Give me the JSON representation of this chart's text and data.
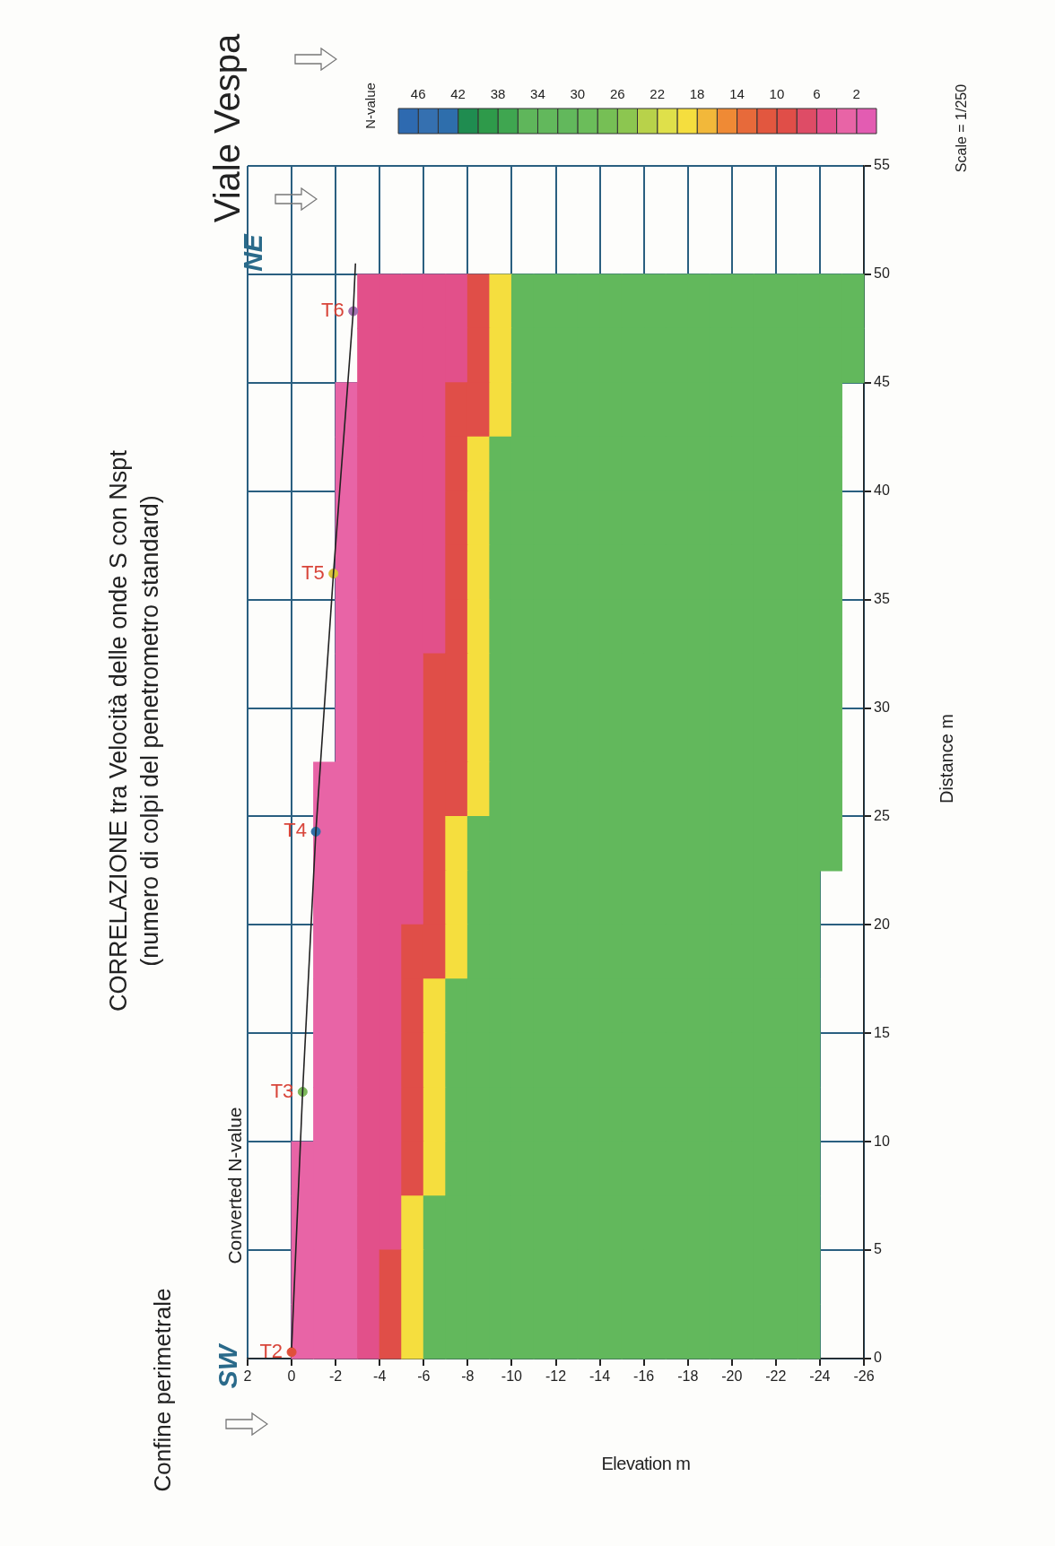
{
  "chart_data": {
    "type": "heatmap",
    "title": "CORRELAZIONE  tra Velocità delle onde S con  Nspt",
    "subtitle": "(numero di colpi del penetrometro standard)",
    "xlabel": "Elevation m",
    "ylabel": "Distance m",
    "clabel": "N-value",
    "xlim": [
      2,
      -26
    ],
    "xticks": [
      2,
      0,
      -2,
      -4,
      -6,
      -8,
      -10,
      -12,
      -14,
      -16,
      -18,
      -20,
      -22,
      -24,
      -26
    ],
    "ylim": [
      0,
      55
    ],
    "yticks": [
      0,
      5,
      10,
      15,
      20,
      25,
      30,
      35,
      40,
      45,
      50,
      55
    ],
    "clim": [
      0,
      48
    ],
    "cticks": [
      2,
      6,
      10,
      14,
      18,
      22,
      26,
      30,
      34,
      38,
      42,
      46
    ],
    "colors": [
      "#e35cb2",
      "#e864a6",
      "#e2508a",
      "#de4c66",
      "#e04e48",
      "#e2573f",
      "#e76a3a",
      "#ef8a35",
      "#f2b83a",
      "#f5de3e",
      "#dfe04a",
      "#b8d24a",
      "#8cc650",
      "#76bf55",
      "#6bbd5a",
      "#62b85c",
      "#62b85c",
      "#5fb65b",
      "#3fa650",
      "#2e9a4a",
      "#1f8c50",
      "#2e6eac",
      "#3570b0",
      "#2e6ab0"
    ],
    "grid": true,
    "legend": false,
    "x": [
      -0.5,
      -1.5,
      -2.5,
      -3.5,
      -4.5,
      -5.5,
      -6.5,
      -7.5,
      -8.5,
      -9.5,
      -10.5,
      -11.5,
      -12.5,
      -13.5,
      -14.5,
      -15.5,
      -16.5,
      -17.5,
      -18.5,
      -19.5,
      -20.5,
      -21.5,
      -22.5,
      -23.5,
      -24.5,
      -25.5
    ],
    "y": [
      48.75,
      46.25,
      43.75,
      41.25,
      38.75,
      36.25,
      33.75,
      31.25,
      28.75,
      26.25,
      23.75,
      21.25,
      18.75,
      16.25,
      13.75,
      11.25,
      8.75,
      6.25,
      3.75,
      1.25
    ],
    "cells": [
      [
        null,
        null,
        null,
        4,
        4,
        4,
        4,
        4,
        8,
        18,
        30,
        30,
        30,
        30,
        30,
        30,
        30,
        30,
        30,
        30,
        30,
        30,
        30,
        30,
        30,
        30
      ],
      [
        null,
        null,
        null,
        4,
        4,
        4,
        4,
        4,
        8,
        18,
        30,
        30,
        30,
        30,
        30,
        30,
        30,
        30,
        30,
        30,
        30,
        30,
        30,
        30,
        30,
        30
      ],
      [
        null,
        null,
        2,
        4,
        4,
        4,
        4,
        8,
        8,
        18,
        30,
        30,
        30,
        30,
        30,
        30,
        30,
        30,
        30,
        30,
        30,
        30,
        30,
        30,
        30,
        null
      ],
      [
        null,
        null,
        2,
        4,
        4,
        4,
        4,
        8,
        18,
        30,
        30,
        30,
        30,
        30,
        30,
        30,
        30,
        30,
        30,
        30,
        30,
        30,
        30,
        30,
        30,
        null
      ],
      [
        null,
        null,
        2,
        4,
        4,
        4,
        4,
        8,
        18,
        30,
        30,
        30,
        30,
        30,
        30,
        30,
        30,
        30,
        30,
        30,
        30,
        30,
        30,
        30,
        30,
        null
      ],
      [
        null,
        null,
        2,
        4,
        4,
        4,
        4,
        8,
        18,
        30,
        30,
        30,
        30,
        30,
        30,
        30,
        30,
        30,
        30,
        30,
        30,
        30,
        30,
        30,
        30,
        null
      ],
      [
        null,
        null,
        2,
        4,
        4,
        4,
        4,
        8,
        18,
        30,
        30,
        30,
        30,
        30,
        30,
        30,
        30,
        30,
        30,
        30,
        30,
        30,
        30,
        30,
        30,
        null
      ],
      [
        null,
        null,
        2,
        4,
        4,
        4,
        8,
        8,
        18,
        30,
        30,
        30,
        30,
        30,
        30,
        30,
        30,
        30,
        30,
        30,
        30,
        30,
        30,
        30,
        30,
        null
      ],
      [
        null,
        null,
        2,
        4,
        4,
        4,
        8,
        8,
        18,
        30,
        30,
        30,
        30,
        30,
        30,
        30,
        30,
        30,
        30,
        30,
        30,
        30,
        30,
        30,
        30,
        null
      ],
      [
        null,
        2,
        2,
        4,
        4,
        4,
        8,
        8,
        18,
        30,
        30,
        30,
        30,
        30,
        30,
        30,
        30,
        30,
        30,
        30,
        30,
        30,
        30,
        30,
        30,
        null
      ],
      [
        null,
        2,
        2,
        4,
        4,
        4,
        8,
        18,
        30,
        30,
        30,
        30,
        30,
        30,
        30,
        30,
        30,
        30,
        30,
        30,
        30,
        30,
        30,
        30,
        30,
        null
      ],
      [
        null,
        2,
        2,
        4,
        4,
        4,
        8,
        18,
        30,
        30,
        30,
        30,
        30,
        30,
        30,
        30,
        30,
        30,
        30,
        30,
        30,
        30,
        30,
        30,
        null,
        null
      ],
      [
        null,
        2,
        2,
        4,
        4,
        8,
        8,
        18,
        30,
        30,
        30,
        30,
        30,
        30,
        30,
        30,
        30,
        30,
        30,
        30,
        30,
        30,
        30,
        30,
        null,
        null
      ],
      [
        null,
        2,
        2,
        4,
        4,
        8,
        18,
        30,
        30,
        30,
        30,
        30,
        30,
        30,
        30,
        30,
        30,
        30,
        30,
        30,
        30,
        30,
        30,
        30,
        null,
        null
      ],
      [
        null,
        2,
        2,
        4,
        4,
        8,
        18,
        30,
        30,
        30,
        30,
        30,
        30,
        30,
        30,
        30,
        30,
        30,
        30,
        30,
        30,
        30,
        30,
        30,
        null,
        null
      ],
      [
        null,
        2,
        2,
        4,
        4,
        8,
        18,
        30,
        30,
        30,
        30,
        30,
        30,
        30,
        30,
        30,
        30,
        30,
        30,
        30,
        30,
        30,
        30,
        30,
        null,
        null
      ],
      [
        2,
        2,
        2,
        4,
        4,
        8,
        18,
        30,
        30,
        30,
        30,
        30,
        30,
        30,
        30,
        30,
        30,
        30,
        30,
        30,
        30,
        30,
        30,
        30,
        null,
        null
      ],
      [
        2,
        2,
        2,
        4,
        4,
        18,
        30,
        30,
        30,
        30,
        30,
        30,
        30,
        30,
        30,
        30,
        30,
        30,
        30,
        30,
        30,
        30,
        30,
        30,
        null,
        null
      ],
      [
        2,
        2,
        2,
        4,
        8,
        18,
        30,
        30,
        30,
        30,
        30,
        30,
        30,
        30,
        30,
        30,
        30,
        30,
        30,
        30,
        30,
        30,
        30,
        30,
        null,
        null
      ],
      [
        2,
        2,
        2,
        4,
        8,
        18,
        30,
        30,
        30,
        30,
        30,
        30,
        30,
        30,
        30,
        30,
        30,
        30,
        30,
        30,
        30,
        30,
        30,
        30,
        null,
        null
      ]
    ],
    "series": [
      {
        "type": "line",
        "color": "#222222",
        "marker": "none",
        "x": [
          0,
          -0.5,
          -1.1,
          -1.9,
          -2.8,
          -2.9
        ],
        "values": [
          0.5,
          12.3,
          24.3,
          36.2,
          48.3,
          50.5
        ]
      },
      {
        "type": "scatter",
        "marker": "circle",
        "colors": [
          "#e0503a",
          "#7bb85a",
          "#2f6fa8",
          "#d8c23a",
          "#a070b0"
        ],
        "x": [
          0,
          -0.5,
          -1.1,
          -1.9,
          -2.8
        ],
        "values": [
          0.3,
          12.3,
          24.3,
          36.2,
          48.3
        ]
      }
    ],
    "annotations": [
      {
        "text": "T2",
        "x": 0,
        "y": 0.3
      },
      {
        "text": "T3",
        "x": -0.5,
        "y": 12.3
      },
      {
        "text": "T4",
        "x": -1.1,
        "y": 24.3
      },
      {
        "text": "T5",
        "x": -1.9,
        "y": 36.2
      },
      {
        "text": "T6",
        "x": -2.8,
        "y": 48.3
      },
      "Confine perimetrale",
      "Viale Vespa",
      "Converted N-value",
      "SW",
      "NE",
      "Scale = 1/250"
    ]
  }
}
